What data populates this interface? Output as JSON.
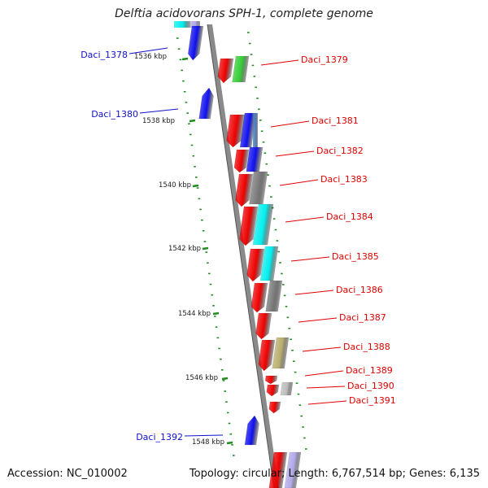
{
  "title": "Delftia acidovorans SPH-1, complete genome",
  "footer": {
    "accession": "Accession: NC_010002",
    "topology": "Topology: circular; Length: 6,767,514 bp; Genes: 6,135"
  },
  "scale_labels": [
    "1536 kbp",
    "1538 kbp",
    "1540 kbp",
    "1542 kbp",
    "1544 kbp",
    "1546 kbp",
    "1548 kbp"
  ],
  "colors": {
    "forward_label": "#e00000",
    "reverse_label": "#1010cc",
    "backbone": "#8a8a8a",
    "tick": "#1e8c1e",
    "cds_red": "#ee0000",
    "blue": "#1010ee",
    "cyan": "#00eeee",
    "gray": "#777777",
    "green": "#33cc33",
    "olive": "#b8ad6b",
    "light_gray": "#bbbbbb",
    "steel_blue": "#4a7fc0",
    "light_violet": "#b0a8e8"
  },
  "forward_labels": [
    "Daci_1379",
    "Daci_1381",
    "Daci_1382",
    "Daci_1383",
    "Daci_1384",
    "Daci_1385",
    "Daci_1386",
    "Daci_1387",
    "Daci_1388",
    "Daci_1389",
    "Daci_1390",
    "Daci_1391"
  ],
  "reverse_labels": [
    "Daci_1378",
    "Daci_1380",
    "Daci_1392"
  ]
}
